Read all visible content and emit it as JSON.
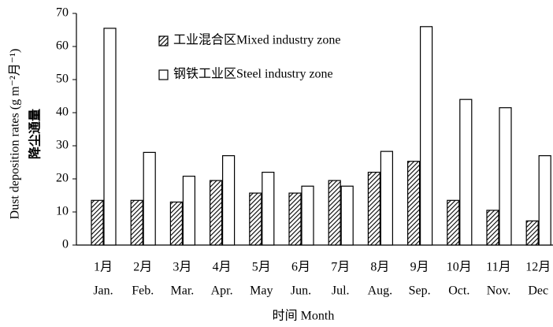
{
  "chart_data": {
    "type": "bar",
    "y_label": "Dust deposition rates (g m⁻²月⁻¹)",
    "y_label_zh": "降尘通量",
    "x_label": "时间 Month",
    "categories": [
      [
        "1月",
        "Jan."
      ],
      [
        "2月",
        "Feb."
      ],
      [
        "3月",
        "Mar."
      ],
      [
        "4月",
        "Apr."
      ],
      [
        "5月",
        "May"
      ],
      [
        "6月",
        "Jun."
      ],
      [
        "7月",
        "Jul."
      ],
      [
        "8月",
        "Aug."
      ],
      [
        "9月",
        "Sep."
      ],
      [
        "10月",
        "Oct."
      ],
      [
        "11月",
        "Nov."
      ],
      [
        "12月",
        "Dec"
      ]
    ],
    "series": [
      {
        "name": "工业混合区Mixed industry zone",
        "color": "#000000",
        "hatch": true,
        "values": [
          13.5,
          13.5,
          13,
          19.5,
          15.7,
          15.7,
          19.5,
          22,
          25.3,
          13.5,
          10.5,
          7.3
        ]
      },
      {
        "name": "钢铁工业区Steel industry zone",
        "color": "#ffffff",
        "hatch": false,
        "values": [
          65.5,
          28,
          20.8,
          27,
          22,
          17.8,
          17.8,
          28.3,
          66,
          44,
          41.5,
          27
        ]
      }
    ],
    "ylim": [
      0,
      70
    ],
    "yticks": [
      0,
      10,
      20,
      30,
      40,
      50,
      60,
      70
    ]
  }
}
